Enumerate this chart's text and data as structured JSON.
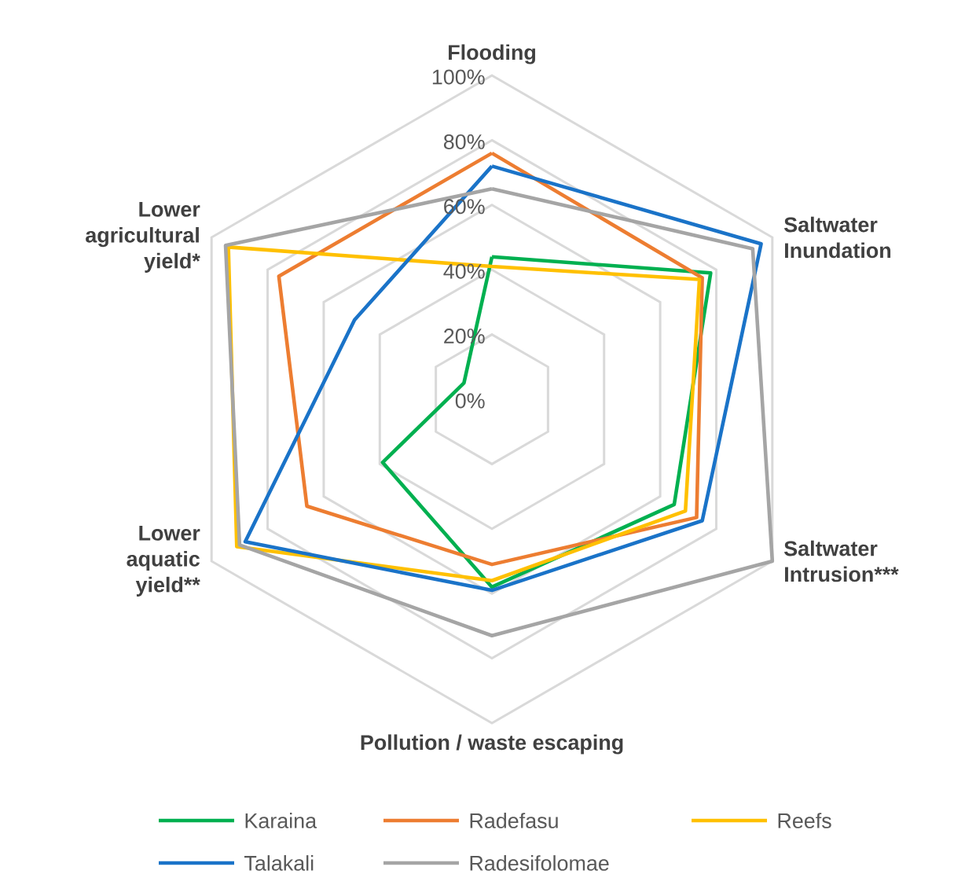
{
  "chart_data": {
    "type": "radar",
    "categories": [
      "Flooding",
      "Saltwater Inundation",
      "Saltwater Intrusion***",
      "Pollution / waste escaping",
      "Lower aquatic yield**",
      "Lower agricultural yield*"
    ],
    "ylim": [
      0,
      100
    ],
    "yticks": [
      {
        "value": 0,
        "label": "0%"
      },
      {
        "value": 20,
        "label": "20%"
      },
      {
        "value": 40,
        "label": "40%"
      },
      {
        "value": 60,
        "label": "60%"
      },
      {
        "value": 80,
        "label": "80%"
      },
      {
        "value": 100,
        "label": "100%"
      }
    ],
    "grid": true,
    "legend": "bottom",
    "series": [
      {
        "name": "Karaina",
        "color": "#00b050",
        "values": [
          44,
          78,
          65,
          58,
          39,
          10
        ]
      },
      {
        "name": "Radefasu",
        "color": "#ed7d31",
        "values": [
          76,
          75,
          73,
          51,
          66,
          76
        ]
      },
      {
        "name": "Reefs",
        "color": "#ffc000",
        "values": [
          41,
          74,
          69,
          56,
          91,
          94
        ]
      },
      {
        "name": "Talakali",
        "color": "#1a73c8",
        "values": [
          72,
          96,
          75,
          59,
          88,
          49
        ]
      },
      {
        "name": "Radesifolomae",
        "color": "#a5a5a5",
        "values": [
          65,
          93,
          100,
          73,
          90,
          95
        ]
      }
    ]
  }
}
